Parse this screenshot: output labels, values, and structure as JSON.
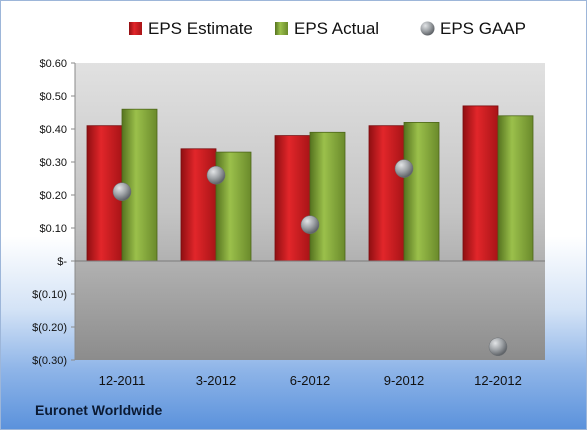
{
  "chart_data": {
    "type": "bar",
    "categories": [
      "12-2011",
      "3-2012",
      "6-2012",
      "9-2012",
      "12-2012"
    ],
    "series": [
      {
        "name": "EPS Estimate",
        "kind": "bar",
        "color": "#d21f22",
        "values": [
          0.41,
          0.34,
          0.38,
          0.41,
          0.47
        ]
      },
      {
        "name": "EPS Actual",
        "kind": "bar",
        "color": "#7fa33a",
        "values": [
          0.46,
          0.33,
          0.39,
          0.42,
          0.44
        ]
      },
      {
        "name": "EPS GAAP",
        "kind": "marker",
        "color": "#9aa0a6",
        "values": [
          0.21,
          0.26,
          0.11,
          0.28,
          -0.26
        ]
      }
    ],
    "ylim": [
      -0.3,
      0.6
    ],
    "yticks": [
      0.6,
      0.5,
      0.4,
      0.3,
      0.2,
      0.1,
      0.0,
      -0.1,
      -0.2,
      -0.3
    ],
    "ytick_labels": [
      "$0.60",
      "$0.50",
      "$0.40",
      "$0.30",
      "$0.20",
      "$0.10",
      "$-",
      "$(0.10)",
      "$(0.20)",
      "$(0.30)"
    ],
    "legend_position": "top",
    "grid": false
  },
  "footer": {
    "company": "Euronet Worldwide"
  }
}
